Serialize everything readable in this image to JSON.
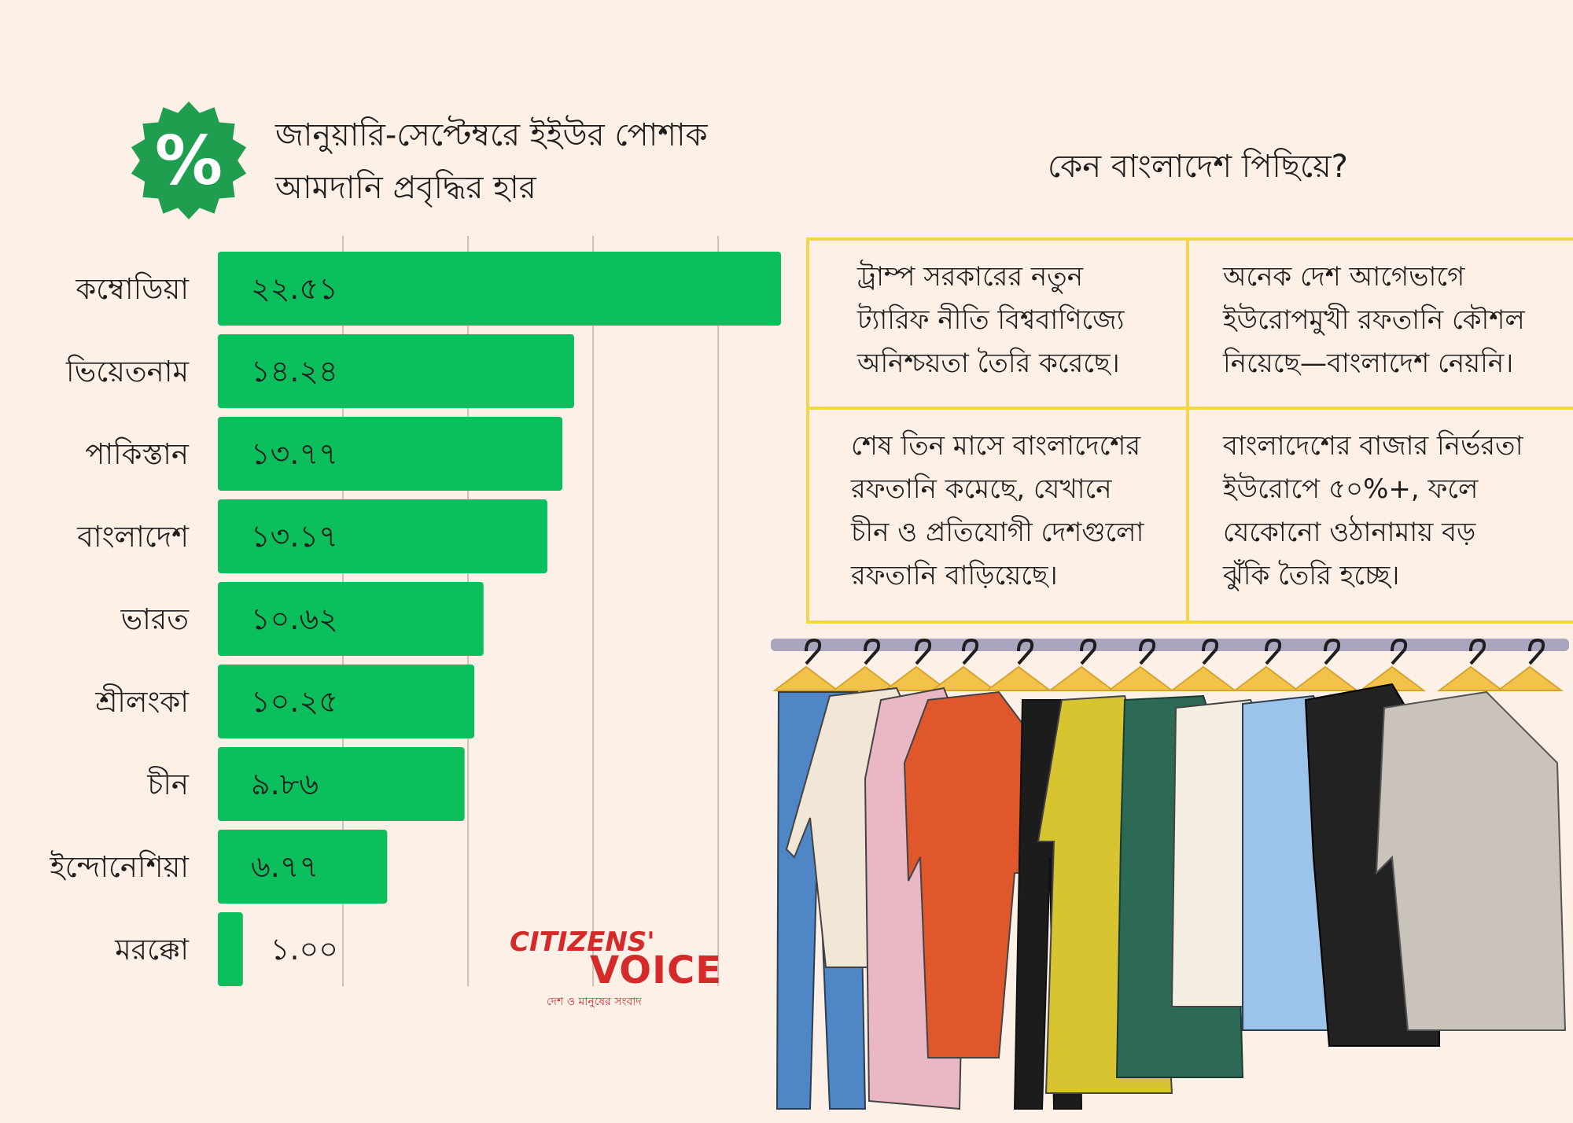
{
  "badge": {
    "symbol": "%",
    "color": "#1f9e4f",
    "icon": "percent-badge-icon"
  },
  "title": {
    "line1": "জানুয়ারি-সেপ্টেম্বরে ইইউর পোশাক",
    "line2": "আমদানি প্রবৃদ্ধির হার"
  },
  "chart_data": {
    "type": "bar",
    "orientation": "horizontal",
    "categories": [
      "কম্বোডিয়া",
      "ভিয়েতনাম",
      "পাকিস্তান",
      "বাংলাদেশ",
      "ভারত",
      "শ্রীলংকা",
      "চীন",
      "ইন্দোনেশিয়া",
      "মরক্কো"
    ],
    "values": [
      22.51,
      14.24,
      13.77,
      13.17,
      10.62,
      10.25,
      9.86,
      6.77,
      1.0
    ],
    "labels": [
      "২২.৫১",
      "১৪.২৪",
      "১৩.৭৭",
      "১৩.১৭",
      "১০.৬২",
      "১০.২৫",
      "৯.৮৬",
      "৬.৭৭",
      "১.০০"
    ],
    "xlim": [
      0,
      22.51
    ],
    "grid": true,
    "grid_values": [
      5,
      10,
      15,
      20
    ],
    "bar_color": "#0bbf5c",
    "grid_color": "#c9c0b8"
  },
  "right_heading": "কেন বাংলাদেশ পিছিয়ে?",
  "reasons": {
    "r1": [
      "ট্রাম্প সরকারের নতুন",
      "ট্যারিফ নীতি বিশ্ববাণিজ্যে",
      "অনিশ্চয়তা তৈরি করেছে।"
    ],
    "r2": [
      "অনেক দেশ আগেভাগে",
      "ইউরোপমুখী রফতানি কৌশল",
      "নিয়েছে—বাংলাদেশ নেয়নি।"
    ],
    "r3": [
      "শেষ তিন মাসে বাংলাদেশের",
      "রফতানি কমেছে, যেখানে",
      "চীন ও প্রতিযোগী দেশগুলো",
      "রফতানি বাড়িয়েছে।"
    ],
    "r4": [
      "বাংলাদেশের বাজার নির্ভরতা",
      "ইউরোপে ৫০%+, ফলে",
      "যেকোনো ওঠানামায় বড়",
      "ঝুঁকি তৈরি হচ্ছে।"
    ],
    "border_color": "#f3d54e"
  },
  "logo": {
    "citizens": "CITIZENS'",
    "voice": "VOICE",
    "tagline": "দেশ ও মানুষের সংবাদ",
    "color": "#d42a2a"
  },
  "illustration": {
    "icon": "clothes-rack-icon",
    "colors": [
      "#4f86c6",
      "#f2e6d6",
      "#eab7c4",
      "#e0572b",
      "#1c1c1c",
      "#d8c431",
      "#2c6a55",
      "#f5eee2",
      "#9cc3ea",
      "#222222",
      "#c9c3bb"
    ]
  }
}
